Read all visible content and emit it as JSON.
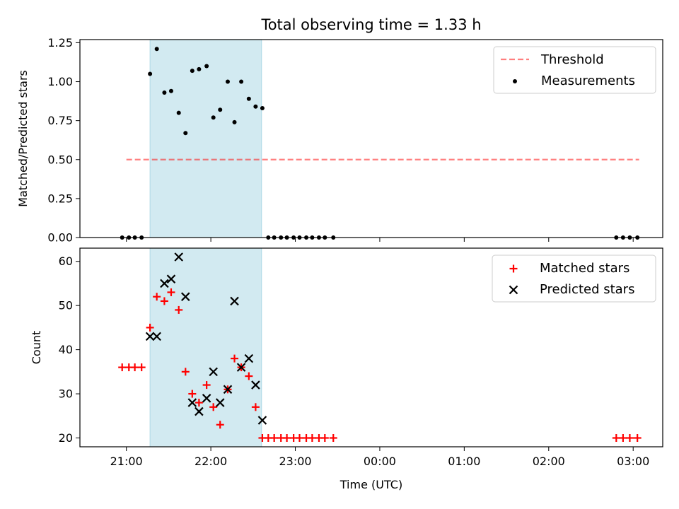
{
  "chart_data": {
    "title": "Total observing time = 1.33 h",
    "xlabel": "Time (UTC)",
    "x_tick_labels": [
      "21:00",
      "22:00",
      "23:00",
      "00:00",
      "01:00",
      "02:00",
      "03:00"
    ],
    "x_tick_hours": [
      21,
      22,
      23,
      24,
      25,
      26,
      27
    ],
    "xlim_hours": [
      20.45,
      27.35
    ],
    "observing_window_hours": [
      21.28,
      22.6
    ],
    "window_color": "#add8e6",
    "panels": [
      {
        "type": "scatter",
        "ylabel": "Matched/Predicted stars",
        "ylim": [
          0,
          1.27
        ],
        "y_ticks": [
          0.0,
          0.25,
          0.5,
          0.75,
          1.0,
          1.25
        ],
        "y_tick_labels": [
          "0.00",
          "0.25",
          "0.50",
          "0.75",
          "1.00",
          "1.25"
        ],
        "threshold": {
          "name": "Threshold",
          "value": 0.5,
          "x_range_hours": [
            21.0,
            27.07
          ],
          "color": "#ff0000",
          "alpha": 0.5
        },
        "series": [
          {
            "name": "Measurements",
            "marker": "dot",
            "color": "#000000",
            "x_hours": [
              20.95,
              21.03,
              21.1,
              21.18,
              21.28,
              21.36,
              21.45,
              21.53,
              21.62,
              21.7,
              21.78,
              21.86,
              21.95,
              22.03,
              22.11,
              22.2,
              22.28,
              22.36,
              22.45,
              22.53,
              22.61,
              22.68,
              22.75,
              22.83,
              22.9,
              22.98,
              23.05,
              23.13,
              23.2,
              23.28,
              23.35,
              23.45,
              26.8,
              26.88,
              26.96,
              27.05
            ],
            "y": [
              0,
              0,
              0,
              0,
              1.05,
              1.21,
              0.93,
              0.94,
              0.8,
              0.67,
              1.07,
              1.08,
              1.1,
              0.77,
              0.82,
              1.0,
              0.74,
              1.0,
              0.89,
              0.84,
              0.83,
              0,
              0,
              0,
              0,
              0,
              0,
              0,
              0,
              0,
              0,
              0,
              0,
              0,
              0,
              0
            ]
          }
        ],
        "legend": [
          "Threshold",
          "Measurements"
        ]
      },
      {
        "type": "scatter",
        "ylabel": "Count",
        "ylim": [
          18,
          63
        ],
        "y_ticks": [
          20,
          30,
          40,
          50,
          60
        ],
        "y_tick_labels": [
          "20",
          "30",
          "40",
          "50",
          "60"
        ],
        "series": [
          {
            "name": "Matched stars",
            "marker": "plus",
            "color": "#ff0000",
            "x_hours": [
              20.95,
              21.03,
              21.1,
              21.18,
              21.28,
              21.36,
              21.45,
              21.53,
              21.62,
              21.7,
              21.78,
              21.86,
              21.95,
              22.03,
              22.11,
              22.2,
              22.28,
              22.36,
              22.45,
              22.53,
              22.61,
              22.68,
              22.75,
              22.83,
              22.9,
              22.98,
              23.05,
              23.13,
              23.2,
              23.28,
              23.35,
              23.45,
              26.8,
              26.88,
              26.96,
              27.05
            ],
            "y": [
              36,
              36,
              36,
              36,
              45,
              52,
              51,
              53,
              49,
              35,
              30,
              28,
              32,
              27,
              23,
              31,
              38,
              36,
              34,
              27,
              20,
              20,
              20,
              20,
              20,
              20,
              20,
              20,
              20,
              20,
              20,
              20,
              20,
              20,
              20,
              20
            ]
          },
          {
            "name": "Predicted stars",
            "marker": "x",
            "color": "#000000",
            "x_hours": [
              21.28,
              21.36,
              21.45,
              21.53,
              21.62,
              21.7,
              21.78,
              21.86,
              21.95,
              22.03,
              22.11,
              22.2,
              22.28,
              22.36,
              22.45,
              22.53,
              22.61
            ],
            "y": [
              43,
              43,
              55,
              56,
              61,
              52,
              28,
              26,
              29,
              35,
              28,
              31,
              51,
              36,
              38,
              32,
              24
            ]
          }
        ],
        "legend": [
          "Matched stars",
          "Predicted stars"
        ]
      }
    ]
  }
}
